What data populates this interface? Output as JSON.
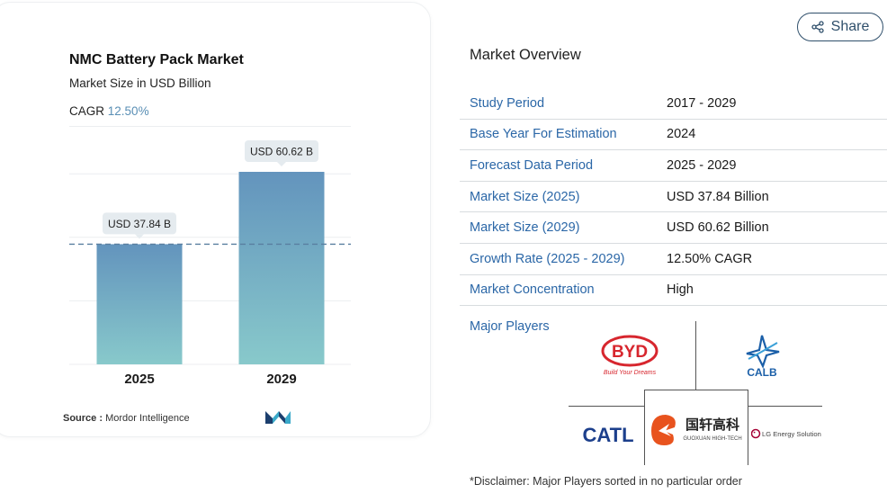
{
  "chart_data": {
    "type": "bar",
    "title": "NMC Battery Pack Market",
    "subtitle": "Market Size in USD Billion",
    "cagr_label": "CAGR",
    "cagr_value": "12.50%",
    "categories": [
      "2025",
      "2029"
    ],
    "values": [
      37.84,
      60.62
    ],
    "data_labels": [
      "USD 37.84 B",
      "USD 60.62 B"
    ],
    "ylim": [
      0,
      80
    ],
    "grid": true,
    "colors": {
      "bar_top": "#6394bd",
      "bar_bottom": "#88c9cb",
      "label_bg": "#e5ebef",
      "dash": "#5a7fa0"
    }
  },
  "source": {
    "label": "Source :",
    "value": "Mordor Intelligence"
  },
  "share": {
    "label": "Share"
  },
  "overview": {
    "title": "Market Overview",
    "rows": [
      {
        "label": "Study Period",
        "value": "2017 - 2029"
      },
      {
        "label": "Base Year For Estimation",
        "value": "2024"
      },
      {
        "label": "Forecast Data Period",
        "value": "2025 - 2029"
      },
      {
        "label": "Market Size (2025)",
        "value": "USD 37.84 Billion"
      },
      {
        "label": "Market Size (2029)",
        "value": "USD 60.62 Billion"
      },
      {
        "label": "Growth Rate (2025 - 2029)",
        "value": "12.50% CAGR"
      },
      {
        "label": "Market Concentration",
        "value": "High"
      }
    ]
  },
  "major_players": {
    "label": "Major Players",
    "logos": [
      {
        "name": "BYD",
        "tagline": "Build Your Dreams",
        "color": "#d7262e"
      },
      {
        "name": "CALB",
        "color": "#1b5fa8"
      },
      {
        "name": "CATL",
        "color": "#1c3f8c"
      },
      {
        "name": "国轩高科",
        "sub": "GUOXUAN HIGH-TECH",
        "color": "#e8531e"
      },
      {
        "name": "LG Energy Solution",
        "color": "#a50034"
      }
    ]
  },
  "disclaimer": "*Disclaimer: Major Players sorted in no particular order"
}
